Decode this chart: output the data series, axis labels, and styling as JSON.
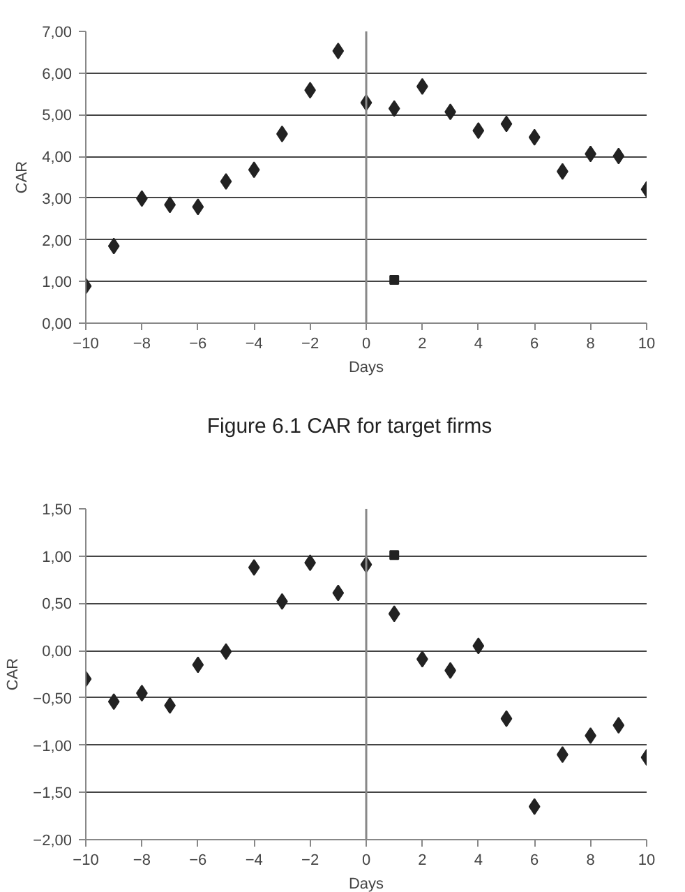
{
  "chart_data": [
    {
      "type": "scatter",
      "title": "Figure 6.1  CAR for target firms",
      "xlabel": "Days",
      "ylabel": "CAR",
      "marker": "diamond",
      "grid": "y",
      "ref_lines": [
        {
          "axis": "x",
          "value": 0
        }
      ],
      "xlim": [
        -10,
        10
      ],
      "ylim": [
        0,
        7
      ],
      "xticks": [
        {
          "value": -10,
          "label": "−10"
        },
        {
          "value": -8,
          "label": "−8"
        },
        {
          "value": -6,
          "label": "−6"
        },
        {
          "value": -4,
          "label": "−4"
        },
        {
          "value": -2,
          "label": "−2"
        },
        0,
        2,
        4,
        6,
        8,
        10
      ],
      "yticks": [
        {
          "value": 0,
          "label": "0,00"
        },
        {
          "value": 1,
          "label": "1,00"
        },
        {
          "value": 2,
          "label": "2,00"
        },
        {
          "value": 3,
          "label": "3,00"
        },
        {
          "value": 4,
          "label": "4,00"
        },
        {
          "value": 5,
          "label": "5,00"
        },
        {
          "value": 6,
          "label": "6,00"
        },
        {
          "value": 7,
          "label": "7,00"
        }
      ],
      "series": [
        {
          "color": "#222222",
          "x": [
            -10,
            -9,
            -8,
            -7,
            -6,
            -5,
            -4,
            -3,
            -2,
            -1,
            0,
            1,
            2,
            3,
            4,
            5,
            6,
            7,
            8,
            9,
            10
          ],
          "values": [
            0.89,
            1.85,
            2.99,
            2.84,
            2.79,
            3.4,
            3.68,
            4.54,
            5.59,
            6.53,
            5.29,
            5.15,
            5.68,
            5.07,
            4.62,
            4.78,
            4.46,
            3.64,
            4.06,
            4.01,
            3.21
          ]
        },
        {
          "color": "#222222",
          "marker": "square",
          "x": [
            1
          ],
          "values": [
            1.04
          ]
        }
      ]
    },
    {
      "type": "scatter",
      "xlabel": "Days",
      "ylabel": "CAR",
      "marker": "diamond",
      "grid": "y",
      "ref_lines": [
        {
          "axis": "x",
          "value": 0
        }
      ],
      "xlim": [
        -10,
        10
      ],
      "ylim": [
        -2,
        1.5
      ],
      "xticks": [
        {
          "value": -10,
          "label": "−10"
        },
        {
          "value": -8,
          "label": "−8"
        },
        {
          "value": -6,
          "label": "−6"
        },
        {
          "value": -4,
          "label": "−4"
        },
        {
          "value": -2,
          "label": "−2"
        },
        0,
        2,
        4,
        6,
        8,
        10
      ],
      "yticks": [
        {
          "value": -2,
          "label": "−2,00"
        },
        {
          "value": -1.5,
          "label": "−1,50"
        },
        {
          "value": -1,
          "label": "−1,00"
        },
        {
          "value": -0.5,
          "label": "−0,50"
        },
        {
          "value": 0,
          "label": "0,00"
        },
        {
          "value": 0.5,
          "label": "0,50"
        },
        {
          "value": 1,
          "label": "1,00"
        },
        {
          "value": 1.5,
          "label": "1,50"
        }
      ],
      "series": [
        {
          "color": "#222222",
          "x": [
            -10,
            -9,
            -8,
            -7,
            -6,
            -5,
            -4,
            -3,
            -2,
            -1,
            0,
            1,
            2,
            3,
            4,
            5,
            6,
            7,
            8,
            9,
            10
          ],
          "values": [
            -0.3,
            -0.54,
            -0.45,
            -0.58,
            -0.15,
            -0.01,
            0.88,
            0.52,
            0.93,
            0.61,
            0.91,
            0.39,
            -0.09,
            -0.21,
            0.05,
            -0.72,
            -1.65,
            -1.1,
            -0.9,
            -0.79,
            -1.13
          ]
        },
        {
          "color": "#222222",
          "marker": "square",
          "x": [
            1
          ],
          "values": [
            1.01
          ]
        }
      ]
    }
  ]
}
